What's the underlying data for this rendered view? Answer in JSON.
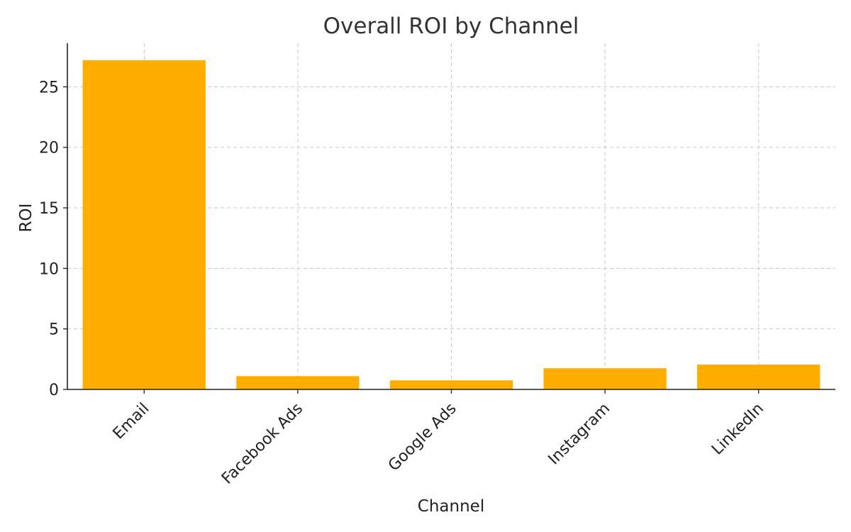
{
  "chart_data": {
    "type": "bar",
    "title": "Overall ROI by Channel",
    "xlabel": "Channel",
    "ylabel": "ROI",
    "categories": [
      "Email",
      "Facebook Ads",
      "Google Ads",
      "Instagram",
      "LinkedIn"
    ],
    "values": [
      27.2,
      1.1,
      0.75,
      1.75,
      2.05
    ],
    "ylim": [
      0,
      28.6
    ],
    "yticks": [
      0,
      5,
      10,
      15,
      20,
      25
    ],
    "grid": true,
    "bar_color": "#FFAE00"
  }
}
